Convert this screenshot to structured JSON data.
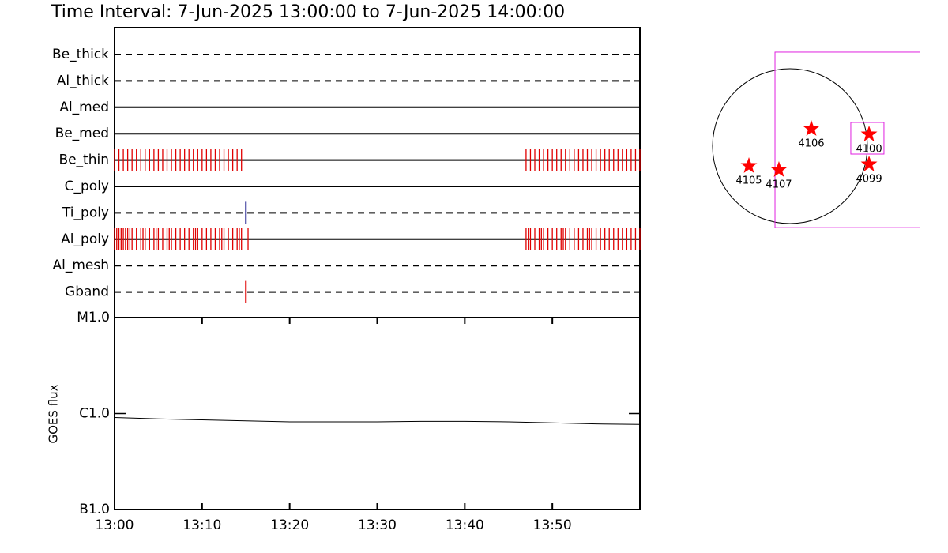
{
  "title": "Time Interval:  7-Jun-2025 13:00:00 to  7-Jun-2025 14:00:00",
  "chart_data": [
    {
      "type": "timeline",
      "categories": [
        "Be_thick",
        "Al_thick",
        "Al_med",
        "Be_med",
        "Be_thin",
        "C_poly",
        "Ti_poly",
        "Al_poly",
        "Al_mesh",
        "Gband"
      ],
      "line_styles": [
        "dashed",
        "dashed",
        "solid",
        "solid",
        "solid",
        "solid",
        "dashed",
        "solid",
        "dashed",
        "dashed"
      ],
      "event_colors": [
        "#e00000",
        "#e00000",
        "#e00000",
        "#e00000",
        "#e00000",
        "#e00000",
        "#333399",
        "#e00000",
        "#e00000",
        "#e00000"
      ],
      "events": [
        [],
        [],
        [],
        [],
        [
          0,
          0.5,
          1,
          1.5,
          2,
          2.5,
          3,
          3.5,
          4,
          4.5,
          5,
          5.5,
          6,
          6.5,
          7,
          7.5,
          8,
          8.5,
          9,
          9.5,
          10,
          10.5,
          11,
          11.5,
          12,
          12.5,
          13,
          13.5,
          14,
          14.5,
          47,
          47.5,
          48,
          48.5,
          49,
          49.5,
          50,
          50.5,
          51,
          51.5,
          52,
          52.5,
          53,
          53.5,
          54,
          54.5,
          55,
          55.5,
          56,
          56.5,
          57,
          57.5,
          58,
          58.5,
          59,
          59.5,
          60
        ],
        [],
        [
          15
        ],
        [
          0,
          0.25,
          0.5,
          0.75,
          1,
          1.25,
          1.5,
          1.75,
          2,
          2.5,
          3,
          3.25,
          3.5,
          4,
          4.5,
          4.75,
          5,
          5.5,
          6,
          6.25,
          6.5,
          7,
          7.5,
          8,
          8.5,
          9,
          9.25,
          9.5,
          10,
          10.5,
          11,
          11.5,
          12,
          12.25,
          12.5,
          13,
          13.5,
          14,
          14.25,
          14.5,
          15.25,
          47,
          47.25,
          47.5,
          48,
          48.5,
          48.75,
          49,
          49.5,
          50,
          50.5,
          51,
          51.25,
          51.5,
          52,
          52.5,
          53,
          53.5,
          54,
          54.25,
          54.5,
          55,
          55.5,
          56,
          56.5,
          57,
          57.5,
          58,
          58.5,
          59,
          59.5,
          60
        ],
        [],
        [
          15
        ]
      ],
      "xlim": [
        0,
        60
      ]
    },
    {
      "type": "line",
      "ylabel": "GOES flux",
      "log_scale": true,
      "color": "#000000",
      "x": [
        0,
        5,
        10,
        15,
        20,
        25,
        30,
        35,
        40,
        45,
        50,
        55,
        60
      ],
      "values": [
        9.1e-07,
        8.8e-07,
        8.6e-07,
        8.4e-07,
        8.2e-07,
        8.2e-07,
        8.2e-07,
        8.3e-07,
        8.3e-07,
        8.2e-07,
        8e-07,
        7.8e-07,
        7.7e-07
      ],
      "xlim": [
        0,
        60
      ],
      "xticks": [
        {
          "value": 0,
          "label": "13:00"
        },
        {
          "value": 10,
          "label": "13:10"
        },
        {
          "value": 20,
          "label": "13:20"
        },
        {
          "value": 30,
          "label": "13:30"
        },
        {
          "value": 40,
          "label": "13:40"
        },
        {
          "value": 50,
          "label": "13:50"
        }
      ],
      "ylim": [
        1e-07,
        1e-05
      ],
      "yticks": [
        {
          "value": 1e-07,
          "label": "B1.0"
        },
        {
          "value": 1e-06,
          "label": "C1.0"
        },
        {
          "value": 1e-05,
          "label": "M1.0"
        }
      ]
    },
    {
      "type": "map",
      "solar_radius": 950,
      "regions": [
        {
          "label": "4106",
          "x": 262,
          "y": 213
        },
        {
          "label": "4100",
          "x": 970,
          "y": 145
        },
        {
          "label": "4105",
          "x": -504,
          "y": -242
        },
        {
          "label": "4107",
          "x": -136,
          "y": -291
        },
        {
          "label": "4099",
          "x": 970,
          "y": -223
        }
      ],
      "region_color": "#ff0000",
      "fov": [
        {
          "x": [
            -184,
            1700
          ],
          "y": [
            -1000,
            1154
          ]
        },
        {
          "x": [
            746,
            1153
          ],
          "y": [
            -97,
            291
          ]
        }
      ],
      "fov_color": "#e020e0"
    }
  ]
}
